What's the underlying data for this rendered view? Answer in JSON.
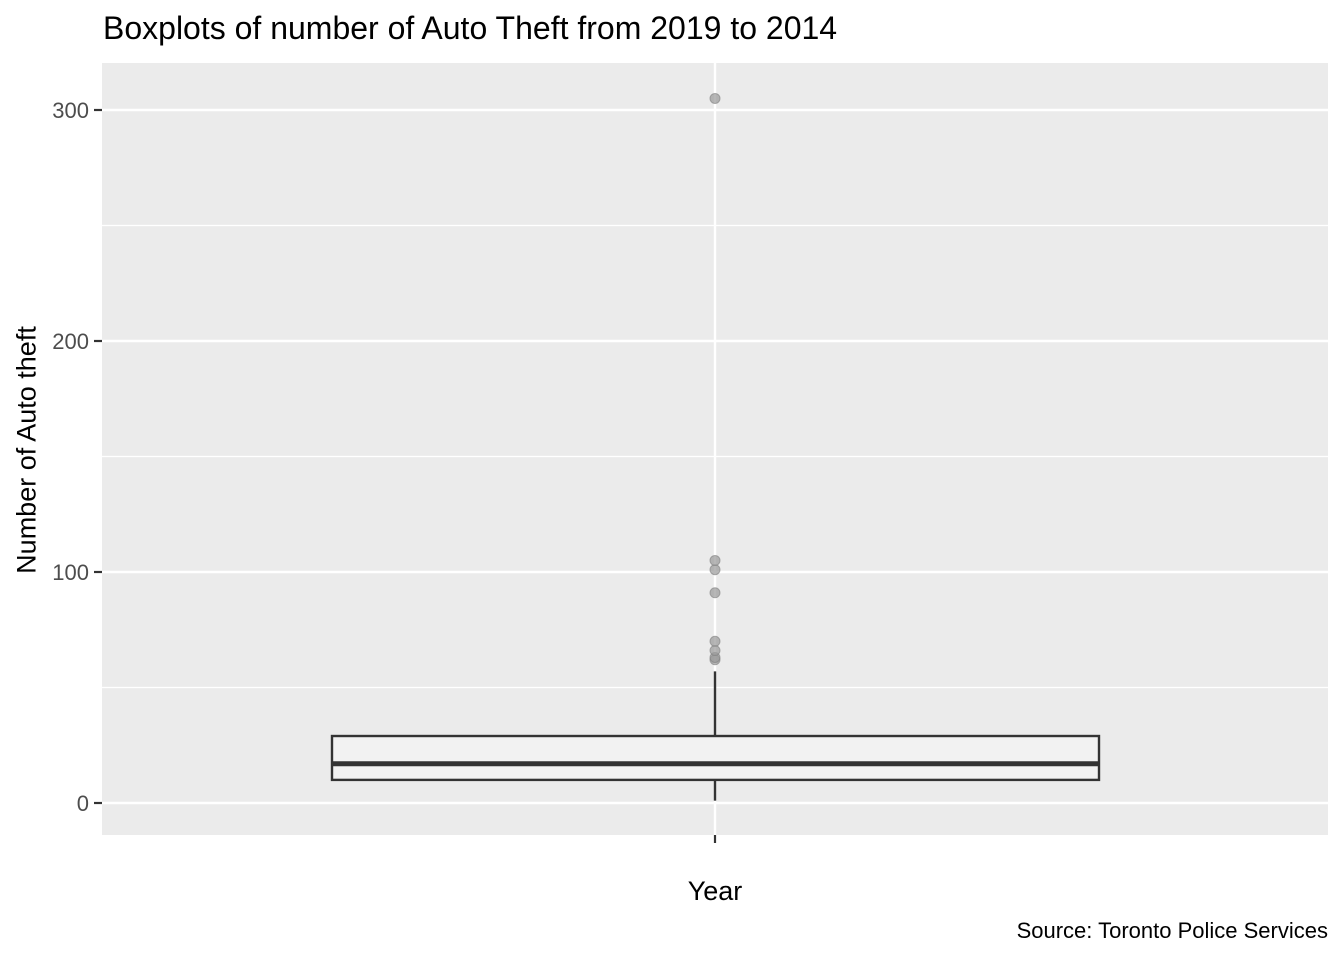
{
  "chart_data": {
    "type": "boxplot",
    "title": "Boxplots of number of Auto Theft from 2019 to 2014",
    "xlabel": "Year",
    "ylabel": "Number of Auto theft",
    "caption": "Source: Toronto Police Services",
    "ylim": [
      -14,
      320
    ],
    "yticks": [
      0,
      100,
      200,
      300
    ],
    "grid": true,
    "box": {
      "min": 1,
      "q1": 10,
      "median": 17,
      "q3": 29,
      "whisker_high": 57,
      "outliers": [
        62,
        63,
        66,
        70,
        91,
        101,
        105,
        305
      ]
    },
    "colors": {
      "panel": "#EBEBEB",
      "grid": "#FFFFFF",
      "box_fill": "#F2F2F2",
      "box_stroke": "#333333",
      "outlier": "#999999",
      "tick_text": "#4D4D4D"
    }
  }
}
